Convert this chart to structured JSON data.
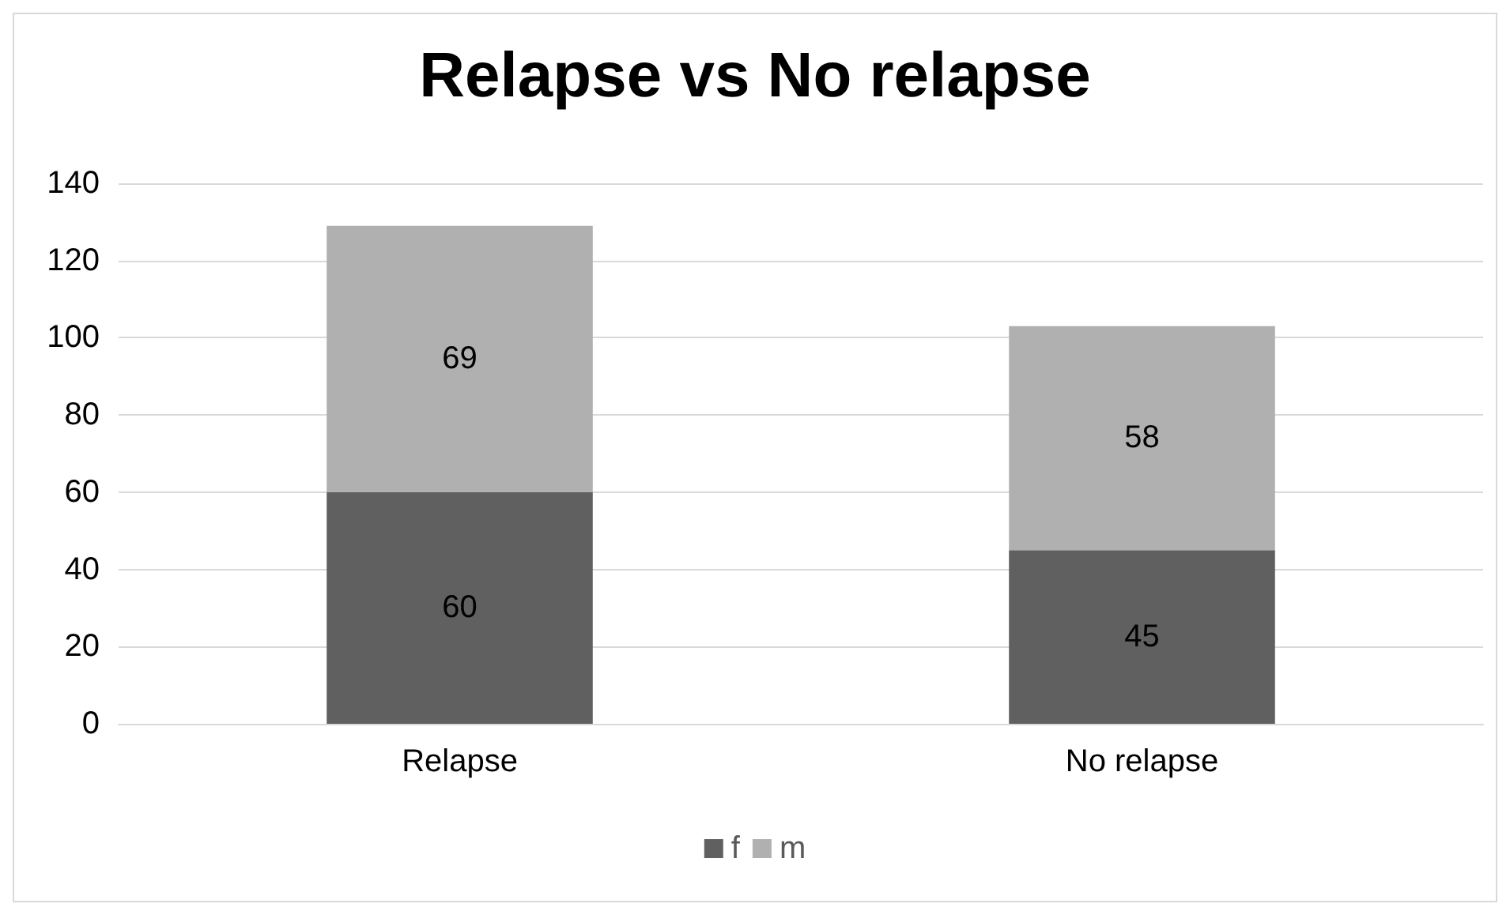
{
  "chart_data": {
    "type": "bar",
    "title": "Relapse vs No relapse",
    "categories": [
      "Relapse",
      "No relapse"
    ],
    "series": [
      {
        "name": "f",
        "color": "#606060",
        "values": [
          60,
          45
        ]
      },
      {
        "name": "m",
        "color": "#b0b0b0",
        "values": [
          69,
          58
        ]
      }
    ],
    "stacked": true,
    "data_labels": true,
    "ylim": [
      0,
      140
    ],
    "yticks": [
      0,
      20,
      40,
      60,
      80,
      100,
      120,
      140
    ],
    "grid": "y",
    "legend": "bottom"
  }
}
